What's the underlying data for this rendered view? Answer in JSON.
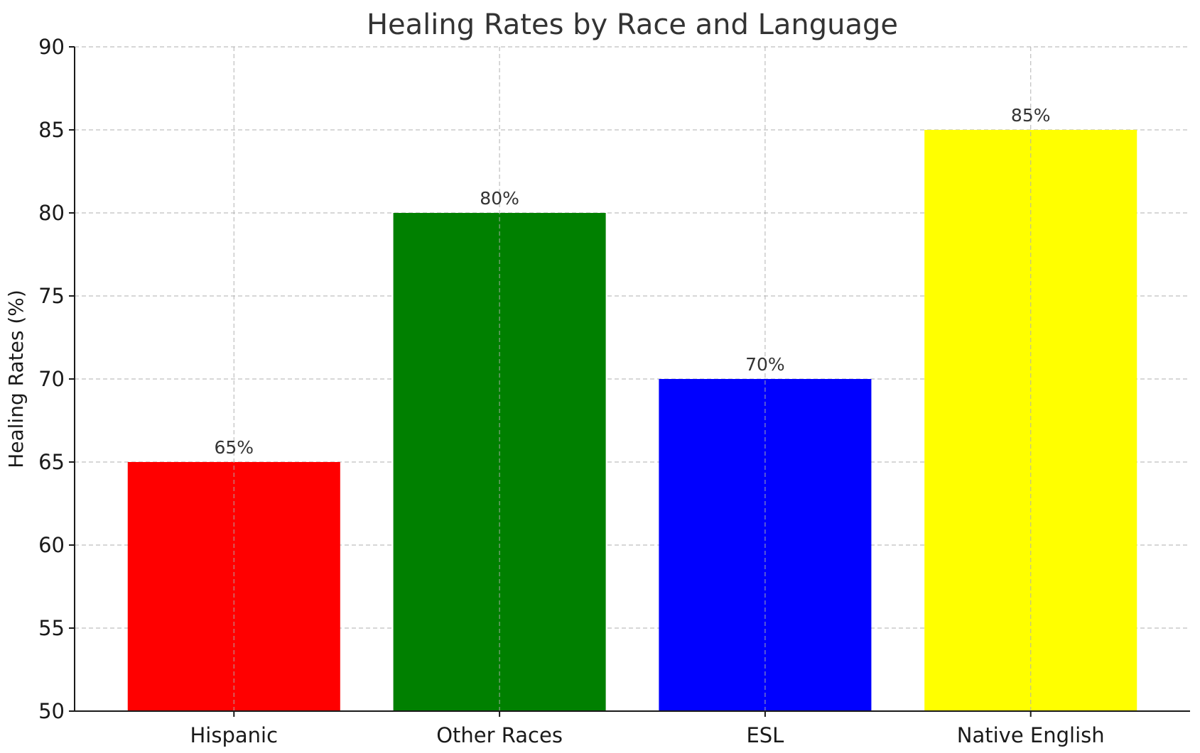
{
  "chart_data": {
    "type": "bar",
    "title": "Healing Rates by Race and Language",
    "xlabel": "",
    "ylabel": "Healing Rates (%)",
    "categories": [
      "Hispanic",
      "Other Races",
      "ESL",
      "Native English"
    ],
    "values": [
      65,
      80,
      70,
      85
    ],
    "value_labels": [
      "65%",
      "80%",
      "70%",
      "85%"
    ],
    "colors": [
      "#ff0000",
      "#008000",
      "#0000ff",
      "#ffff00"
    ],
    "ylim": [
      50,
      90
    ],
    "yticks": [
      50,
      55,
      60,
      65,
      70,
      75,
      80,
      85,
      90
    ],
    "ytick_labels": [
      "50",
      "55",
      "60",
      "65",
      "70",
      "75",
      "80",
      "85",
      "90"
    ],
    "grid": true,
    "legend": "none"
  }
}
